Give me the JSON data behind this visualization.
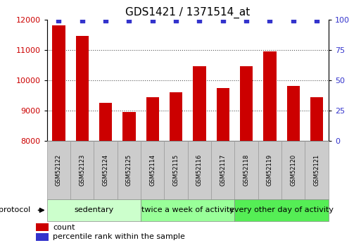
{
  "title": "GDS1421 / 1371514_at",
  "samples": [
    "GSM52122",
    "GSM52123",
    "GSM52124",
    "GSM52125",
    "GSM52114",
    "GSM52115",
    "GSM52116",
    "GSM52117",
    "GSM52118",
    "GSM52119",
    "GSM52120",
    "GSM52121"
  ],
  "counts": [
    11800,
    11450,
    9250,
    8950,
    9450,
    9600,
    10450,
    9750,
    10450,
    10950,
    9800,
    9450
  ],
  "bar_color": "#cc0000",
  "dot_color": "#3333cc",
  "ylim_left": [
    8000,
    12000
  ],
  "ylim_right": [
    0,
    100
  ],
  "yticks_left": [
    8000,
    9000,
    10000,
    11000,
    12000
  ],
  "yticks_right": [
    0,
    25,
    50,
    75,
    100
  ],
  "groups": [
    {
      "label": "sedentary",
      "start": 0,
      "end": 4,
      "color": "#ccffcc"
    },
    {
      "label": "twice a week of activity",
      "start": 4,
      "end": 8,
      "color": "#99ff99"
    },
    {
      "label": "every other day of activity",
      "start": 8,
      "end": 12,
      "color": "#55ee55"
    }
  ],
  "legend_items": [
    {
      "label": "count",
      "color": "#cc0000"
    },
    {
      "label": "percentile rank within the sample",
      "color": "#3333cc"
    }
  ],
  "protocol_label": "protocol",
  "bar_color_red": "#cc0000",
  "right_axis_color": "#3333cc",
  "background_color": "#ffffff",
  "sample_box_color": "#cccccc",
  "sample_box_edge": "#999999",
  "grid_color": "#555555",
  "title_fontsize": 11,
  "tick_fontsize": 8,
  "sample_fontsize": 6,
  "proto_fontsize": 8
}
